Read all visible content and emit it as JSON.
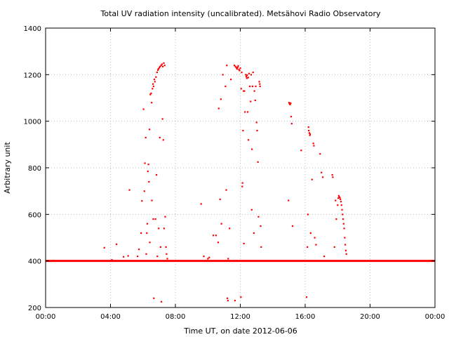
{
  "chart_data": {
    "type": "scatter",
    "title": "Total UV radiation intensity (uncalibrated). Metsähovi Radio Observatory",
    "xlabel": "Time UT, on date 2012-06-06",
    "ylabel": "Arbitrary unit",
    "xlim": [
      "00:00",
      "24:00"
    ],
    "ylim": [
      200,
      1400
    ],
    "xticks": [
      "00:00",
      "04:00",
      "08:00",
      "12:00",
      "16:00",
      "20:00",
      "00:00"
    ],
    "yticks": [
      "200",
      "400",
      "600",
      "800",
      "1000",
      "1200",
      "1400"
    ],
    "grid": true,
    "marker_color": "#ff0000",
    "baseline": {
      "y": 400,
      "x_range": [
        "00:00",
        "24:00"
      ]
    },
    "points": [
      [
        "03:37",
        457
      ],
      [
        "04:05",
        405
      ],
      [
        "04:22",
        472
      ],
      [
        "04:48",
        418
      ],
      [
        "05:05",
        422
      ],
      [
        "05:10",
        705
      ],
      [
        "05:40",
        420
      ],
      [
        "05:45",
        450
      ],
      [
        "05:53",
        520
      ],
      [
        "05:56",
        658
      ],
      [
        "06:00",
        400
      ],
      [
        "06:02",
        1052
      ],
      [
        "06:05",
        700
      ],
      [
        "06:07",
        820
      ],
      [
        "06:10",
        930
      ],
      [
        "06:12",
        430
      ],
      [
        "06:14",
        520
      ],
      [
        "06:16",
        560
      ],
      [
        "06:18",
        785
      ],
      [
        "06:20",
        815
      ],
      [
        "06:22",
        740
      ],
      [
        "06:24",
        965
      ],
      [
        "06:25",
        480
      ],
      [
        "06:27",
        1115
      ],
      [
        "06:30",
        1120
      ],
      [
        "06:32",
        1080
      ],
      [
        "06:33",
        660
      ],
      [
        "06:35",
        1140
      ],
      [
        "06:37",
        1160
      ],
      [
        "06:38",
        580
      ],
      [
        "06:39",
        1150
      ],
      [
        "06:40",
        240
      ],
      [
        "06:42",
        1180
      ],
      [
        "06:44",
        1170
      ],
      [
        "06:46",
        580
      ],
      [
        "06:48",
        1190
      ],
      [
        "06:50",
        770
      ],
      [
        "06:52",
        1210
      ],
      [
        "06:53",
        420
      ],
      [
        "06:55",
        1220
      ],
      [
        "06:57",
        1225
      ],
      [
        "06:58",
        540
      ],
      [
        "07:00",
        1230
      ],
      [
        "07:02",
        930
      ],
      [
        "07:03",
        1235
      ],
      [
        "07:05",
        460
      ],
      [
        "07:07",
        1240
      ],
      [
        "07:08",
        225
      ],
      [
        "07:10",
        1245
      ],
      [
        "07:12",
        1010
      ],
      [
        "07:13",
        1235
      ],
      [
        "07:15",
        920
      ],
      [
        "07:17",
        1250
      ],
      [
        "07:18",
        540
      ],
      [
        "07:20",
        1240
      ],
      [
        "07:22",
        590
      ],
      [
        "07:25",
        460
      ],
      [
        "07:27",
        430
      ],
      [
        "07:30",
        410
      ],
      [
        "09:35",
        645
      ],
      [
        "09:45",
        420
      ],
      [
        "10:00",
        410
      ],
      [
        "10:05",
        415
      ],
      [
        "10:20",
        510
      ],
      [
        "10:30",
        510
      ],
      [
        "10:38",
        480
      ],
      [
        "10:40",
        1055
      ],
      [
        "10:45",
        665
      ],
      [
        "10:48",
        1095
      ],
      [
        "10:50",
        560
      ],
      [
        "10:55",
        1200
      ],
      [
        "11:05",
        1150
      ],
      [
        "11:08",
        705
      ],
      [
        "11:10",
        1240
      ],
      [
        "11:12",
        240
      ],
      [
        "11:14",
        230
      ],
      [
        "11:15",
        410
      ],
      [
        "11:20",
        540
      ],
      [
        "11:25",
        1180
      ],
      [
        "11:38",
        1240
      ],
      [
        "11:40",
        230
      ],
      [
        "11:42",
        1235
      ],
      [
        "11:45",
        1230
      ],
      [
        "11:48",
        1225
      ],
      [
        "11:50",
        1232
      ],
      [
        "11:52",
        1238
      ],
      [
        "11:55",
        1222
      ],
      [
        "11:57",
        1218
      ],
      [
        "12:00",
        1228
      ],
      [
        "12:02",
        245
      ],
      [
        "12:03",
        1140
      ],
      [
        "12:05",
        1210
      ],
      [
        "12:07",
        720
      ],
      [
        "12:08",
        735
      ],
      [
        "12:10",
        960
      ],
      [
        "12:12",
        1130
      ],
      [
        "12:13",
        475
      ],
      [
        "12:15",
        1130
      ],
      [
        "12:17",
        1040
      ],
      [
        "12:20",
        1200
      ],
      [
        "12:22",
        1192
      ],
      [
        "12:24",
        1185
      ],
      [
        "12:25",
        1198
      ],
      [
        "12:27",
        1040
      ],
      [
        "12:29",
        1188
      ],
      [
        "12:30",
        920
      ],
      [
        "12:32",
        1205
      ],
      [
        "12:35",
        1150
      ],
      [
        "12:38",
        1085
      ],
      [
        "12:40",
        1200
      ],
      [
        "12:42",
        620
      ],
      [
        "12:43",
        880
      ],
      [
        "12:45",
        1150
      ],
      [
        "12:47",
        1210
      ],
      [
        "12:50",
        520
      ],
      [
        "12:52",
        1130
      ],
      [
        "12:55",
        1090
      ],
      [
        "12:57",
        1150
      ],
      [
        "13:00",
        995
      ],
      [
        "13:02",
        960
      ],
      [
        "13:05",
        825
      ],
      [
        "13:07",
        590
      ],
      [
        "13:10",
        1170
      ],
      [
        "13:12",
        1160
      ],
      [
        "13:13",
        1150
      ],
      [
        "13:15",
        550
      ],
      [
        "13:17",
        460
      ],
      [
        "14:58",
        660
      ],
      [
        "15:00",
        1080
      ],
      [
        "15:02",
        1075
      ],
      [
        "15:04",
        1072
      ],
      [
        "15:06",
        1078
      ],
      [
        "15:08",
        1020
      ],
      [
        "15:10",
        990
      ],
      [
        "15:13",
        550
      ],
      [
        "15:45",
        875
      ],
      [
        "16:05",
        245
      ],
      [
        "16:08",
        460
      ],
      [
        "16:10",
        600
      ],
      [
        "16:12",
        975
      ],
      [
        "16:13",
        960
      ],
      [
        "16:15",
        950
      ],
      [
        "16:17",
        940
      ],
      [
        "16:18",
        945
      ],
      [
        "16:20",
        520
      ],
      [
        "16:25",
        750
      ],
      [
        "16:30",
        905
      ],
      [
        "16:32",
        895
      ],
      [
        "16:35",
        500
      ],
      [
        "16:40",
        470
      ],
      [
        "16:55",
        860
      ],
      [
        "17:00",
        780
      ],
      [
        "17:05",
        760
      ],
      [
        "17:10",
        420
      ],
      [
        "17:40",
        770
      ],
      [
        "17:42",
        760
      ],
      [
        "17:48",
        460
      ],
      [
        "17:52",
        660
      ],
      [
        "17:55",
        580
      ],
      [
        "18:00",
        640
      ],
      [
        "18:02",
        670
      ],
      [
        "18:04",
        680
      ],
      [
        "18:06",
        675
      ],
      [
        "18:08",
        672
      ],
      [
        "18:10",
        665
      ],
      [
        "18:12",
        655
      ],
      [
        "18:14",
        640
      ],
      [
        "18:16",
        620
      ],
      [
        "18:18",
        600
      ],
      [
        "18:20",
        580
      ],
      [
        "18:22",
        560
      ],
      [
        "18:24",
        540
      ],
      [
        "18:26",
        500
      ],
      [
        "18:28",
        470
      ],
      [
        "18:30",
        445
      ],
      [
        "18:32",
        430
      ]
    ]
  }
}
